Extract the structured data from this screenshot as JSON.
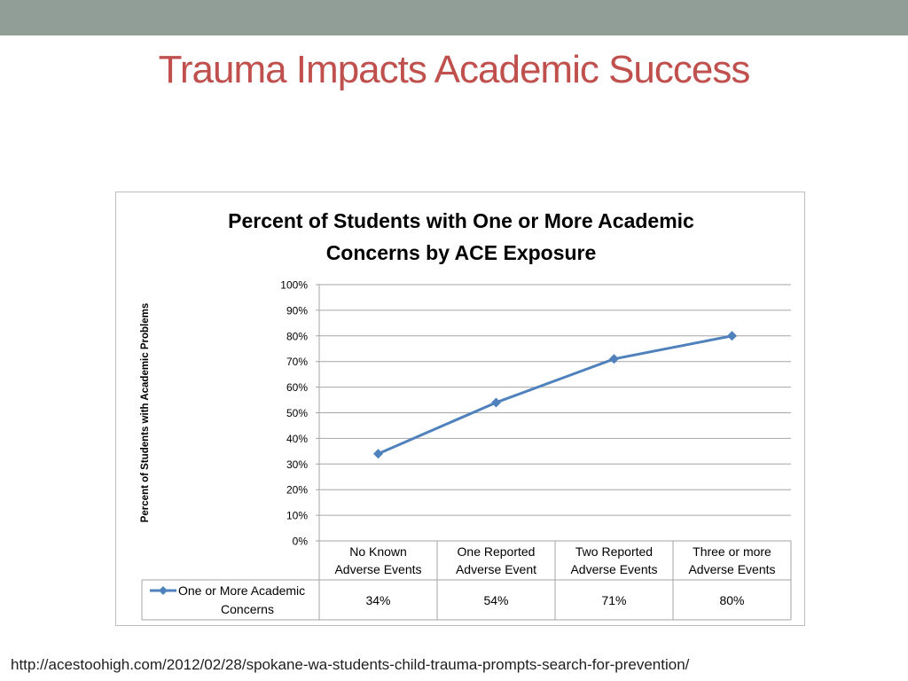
{
  "slide": {
    "title": "Trauma Impacts Academic Success",
    "source_url": "http://acestoohigh.com/2012/02/28/spokane-wa-students-child-trauma-prompts-search-for-prevention/"
  },
  "colors": {
    "title": "#c0504d",
    "top_band": "#919e98",
    "series": "#4f81bd"
  },
  "chart_data": {
    "type": "line",
    "title": "Percent of Students with One or More Academic Concerns by ACE Exposure",
    "title_lines": [
      "Percent of Students with One or More Academic",
      "Concerns by ACE Exposure"
    ],
    "ylabel": "Percent of Students with Academic Problems",
    "xlabel": "",
    "ylim": [
      0,
      100
    ],
    "y_ticks": [
      "0%",
      "10%",
      "20%",
      "30%",
      "40%",
      "50%",
      "60%",
      "70%",
      "80%",
      "90%",
      "100%"
    ],
    "grid": true,
    "categories": [
      [
        "No Known",
        "Adverse Events"
      ],
      [
        "One Reported",
        "Adverse Event"
      ],
      [
        "Two Reported",
        "Adverse Events"
      ],
      [
        "Three or more",
        "Adverse Events"
      ]
    ],
    "series": [
      {
        "name": "One or More Academic Concerns",
        "name_lines": [
          "One or More Academic",
          "Concerns"
        ],
        "values": [
          34,
          54,
          71,
          80
        ],
        "value_labels": [
          "34%",
          "54%",
          "71%",
          "80%"
        ]
      }
    ],
    "legend": "data-table"
  }
}
